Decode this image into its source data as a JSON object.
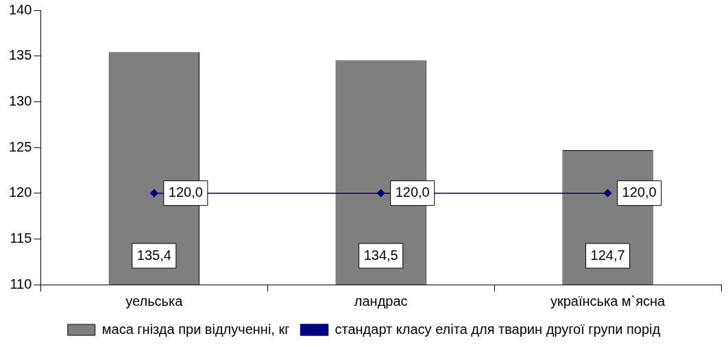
{
  "chart_data": {
    "type": "bar",
    "categories": [
      "уельська",
      "ландрас",
      "українська м`ясна"
    ],
    "series": [
      {
        "name": "маса гнізда при відлученні, кг",
        "color": "#7f7f7f",
        "values": [
          135.4,
          134.5,
          124.7
        ],
        "value_labels": [
          "135,4",
          "134,5",
          "124,7"
        ]
      },
      {
        "name": "стандарт класу еліта для тварин другої групи порід",
        "type": "line",
        "color": "#000080",
        "values": [
          120,
          120,
          120
        ],
        "value_labels": [
          "120,0",
          "120,0",
          "120,0"
        ],
        "marker": "diamond"
      }
    ],
    "ylim": [
      110,
      140
    ],
    "yticks": [
      110,
      115,
      120,
      125,
      130,
      135,
      140
    ],
    "grid": false,
    "legend": "bottom"
  }
}
